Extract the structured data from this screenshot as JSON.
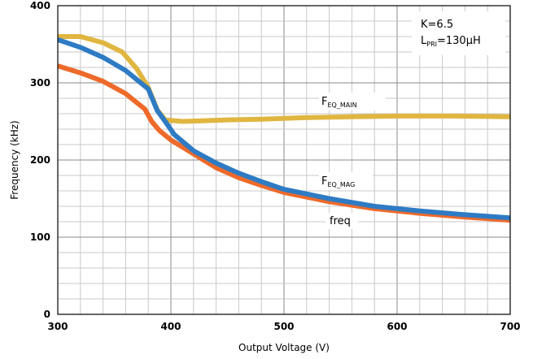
{
  "colors": {
    "main": "#E0B640",
    "mag": "#2E7BC4",
    "freq": "#EE6A2A",
    "grid": "#c8c8c8"
  },
  "chart_data": {
    "type": "line",
    "xlabel": "Output Voltage (V)",
    "ylabel": "Frequency (kHz)",
    "xlim": [
      300,
      700
    ],
    "ylim": [
      0,
      400
    ],
    "xticks": [
      "300",
      "400",
      "500",
      "600",
      "700"
    ],
    "yticks": [
      "0",
      "100",
      "200",
      "300",
      "400"
    ],
    "grid": true,
    "series": [
      {
        "name": "F_EQ_MAIN",
        "color": "#E0B640",
        "x": [
          300,
          320,
          340,
          357,
          370,
          380,
          388,
          395,
          410,
          430,
          450,
          480,
          520,
          560,
          600,
          650,
          700
        ],
        "y": [
          360,
          360,
          352,
          340,
          318,
          294,
          265,
          252,
          250,
          251,
          252,
          253,
          255,
          256,
          257,
          257,
          256
        ]
      },
      {
        "name": "F_EQ_MAG",
        "color": "#2E7BC4",
        "x": [
          300,
          320,
          340,
          360,
          380,
          388,
          395,
          403,
          420,
          440,
          460,
          480,
          500,
          540,
          580,
          620,
          660,
          700
        ],
        "y": [
          356,
          346,
          333,
          316,
          292,
          264,
          250,
          233,
          212,
          196,
          183,
          172,
          162,
          150,
          140,
          134,
          129,
          125
        ]
      },
      {
        "name": "freq",
        "color": "#EE6A2A",
        "x": [
          300,
          320,
          340,
          360,
          377,
          383,
          390,
          400,
          420,
          440,
          460,
          480,
          500,
          540,
          580,
          620,
          660,
          700
        ],
        "y": [
          322,
          313,
          302,
          286,
          266,
          250,
          238,
          226,
          208,
          190,
          177,
          167,
          158,
          146,
          137,
          131,
          126,
          122
        ]
      }
    ],
    "annotations": {
      "k": "K=6.5",
      "lpri_main": "L",
      "lpri_sub": "PRI",
      "lpri_value": "=130µH",
      "main_main": "F",
      "main_sub": "EQ_MAIN",
      "mag_main": "F",
      "mag_sub": "EQ_MAG",
      "freq": "freq"
    }
  }
}
